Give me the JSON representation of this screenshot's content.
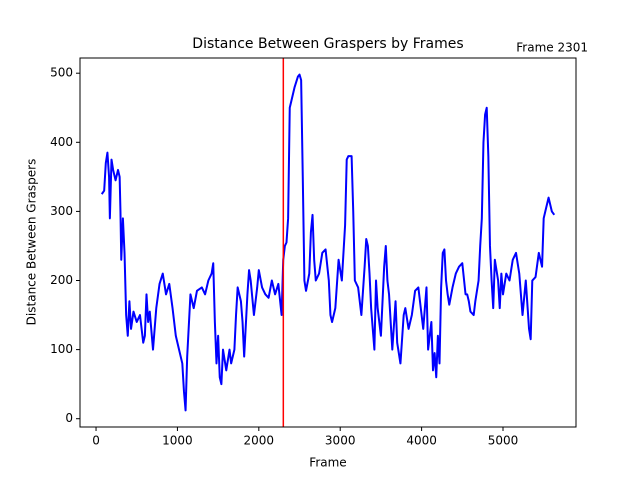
{
  "chart_data": {
    "type": "line",
    "title": "Distance Between Graspers by Frames",
    "xlabel": "Frame",
    "ylabel": "Distance Between Graspers",
    "annotation": "Frame 2301",
    "vline": {
      "x": 2301,
      "color": "#ff0000"
    },
    "xlim": [
      -197,
      5897
    ],
    "ylim": [
      -12,
      522
    ],
    "xticks": [
      0,
      1000,
      2000,
      3000,
      4000,
      5000
    ],
    "yticks": [
      0,
      100,
      200,
      300,
      400,
      500
    ],
    "series": [
      {
        "name": "Distance",
        "color": "#0000ff",
        "x": [
          70,
          100,
          120,
          140,
          160,
          170,
          190,
          210,
          240,
          270,
          290,
          300,
          310,
          330,
          350,
          370,
          390,
          410,
          430,
          460,
          500,
          540,
          580,
          600,
          620,
          640,
          660,
          700,
          740,
          780,
          820,
          860,
          900,
          940,
          980,
          1020,
          1060,
          1080,
          1100,
          1120,
          1160,
          1200,
          1240,
          1300,
          1340,
          1380,
          1420,
          1440,
          1460,
          1480,
          1500,
          1520,
          1540,
          1560,
          1600,
          1640,
          1660,
          1700,
          1720,
          1740,
          1780,
          1800,
          1820,
          1860,
          1880,
          1900,
          1940,
          1980,
          2000,
          2040,
          2080,
          2120,
          2160,
          2200,
          2240,
          2280,
          2300,
          2320,
          2340,
          2360,
          2380,
          2400,
          2440,
          2480,
          2500,
          2520,
          2540,
          2560,
          2580,
          2620,
          2640,
          2660,
          2680,
          2700,
          2740,
          2780,
          2820,
          2860,
          2880,
          2900,
          2940,
          2980,
          3020,
          3060,
          3080,
          3100,
          3140,
          3160,
          3180,
          3220,
          3260,
          3300,
          3320,
          3340,
          3360,
          3380,
          3420,
          3440,
          3460,
          3500,
          3540,
          3560,
          3580,
          3600,
          3640,
          3680,
          3700,
          3740,
          3780,
          3800,
          3840,
          3880,
          3920,
          3960,
          4000,
          4020,
          4060,
          4080,
          4120,
          4140,
          4160,
          4180,
          4200,
          4220,
          4240,
          4260,
          4280,
          4300,
          4320,
          4340,
          4380,
          4420,
          4460,
          4500,
          4540,
          4560,
          4580,
          4600,
          4640,
          4660,
          4700,
          4720,
          4740,
          4760,
          4780,
          4800,
          4820,
          4840,
          4860,
          4880,
          4900,
          4940,
          4960,
          4980,
          5000,
          5040,
          5080,
          5120,
          5160,
          5200,
          5240,
          5280,
          5320,
          5340,
          5360,
          5400,
          5440,
          5480,
          5500,
          5520,
          5560,
          5600,
          5630
        ],
        "values": [
          325,
          330,
          370,
          385,
          350,
          290,
          375,
          360,
          345,
          360,
          350,
          300,
          230,
          290,
          240,
          150,
          120,
          170,
          130,
          155,
          140,
          150,
          110,
          120,
          180,
          140,
          155,
          100,
          160,
          195,
          210,
          180,
          195,
          160,
          120,
          100,
          80,
          40,
          12,
          90,
          180,
          160,
          185,
          190,
          180,
          200,
          210,
          225,
          140,
          80,
          120,
          60,
          50,
          100,
          70,
          100,
          80,
          100,
          150,
          190,
          170,
          140,
          90,
          180,
          215,
          200,
          150,
          190,
          215,
          190,
          180,
          175,
          200,
          180,
          195,
          150,
          230,
          250,
          255,
          290,
          450,
          460,
          480,
          495,
          498,
          490,
          350,
          200,
          185,
          210,
          270,
          295,
          230,
          200,
          210,
          240,
          245,
          200,
          150,
          140,
          160,
          230,
          200,
          280,
          375,
          380,
          380,
          300,
          200,
          190,
          150,
          220,
          260,
          250,
          210,
          160,
          100,
          200,
          160,
          120,
          220,
          250,
          200,
          180,
          100,
          170,
          110,
          80,
          150,
          160,
          130,
          150,
          185,
          190,
          150,
          130,
          190,
          100,
          140,
          70,
          95,
          60,
          120,
          80,
          190,
          240,
          245,
          200,
          180,
          165,
          190,
          210,
          220,
          225,
          180,
          180,
          170,
          155,
          150,
          170,
          200,
          250,
          290,
          400,
          440,
          450,
          380,
          250,
          200,
          160,
          230,
          200,
          160,
          210,
          180,
          210,
          200,
          230,
          240,
          210,
          150,
          200,
          130,
          115,
          200,
          205,
          240,
          220,
          290,
          300,
          320,
          300,
          295
        ]
      }
    ]
  }
}
